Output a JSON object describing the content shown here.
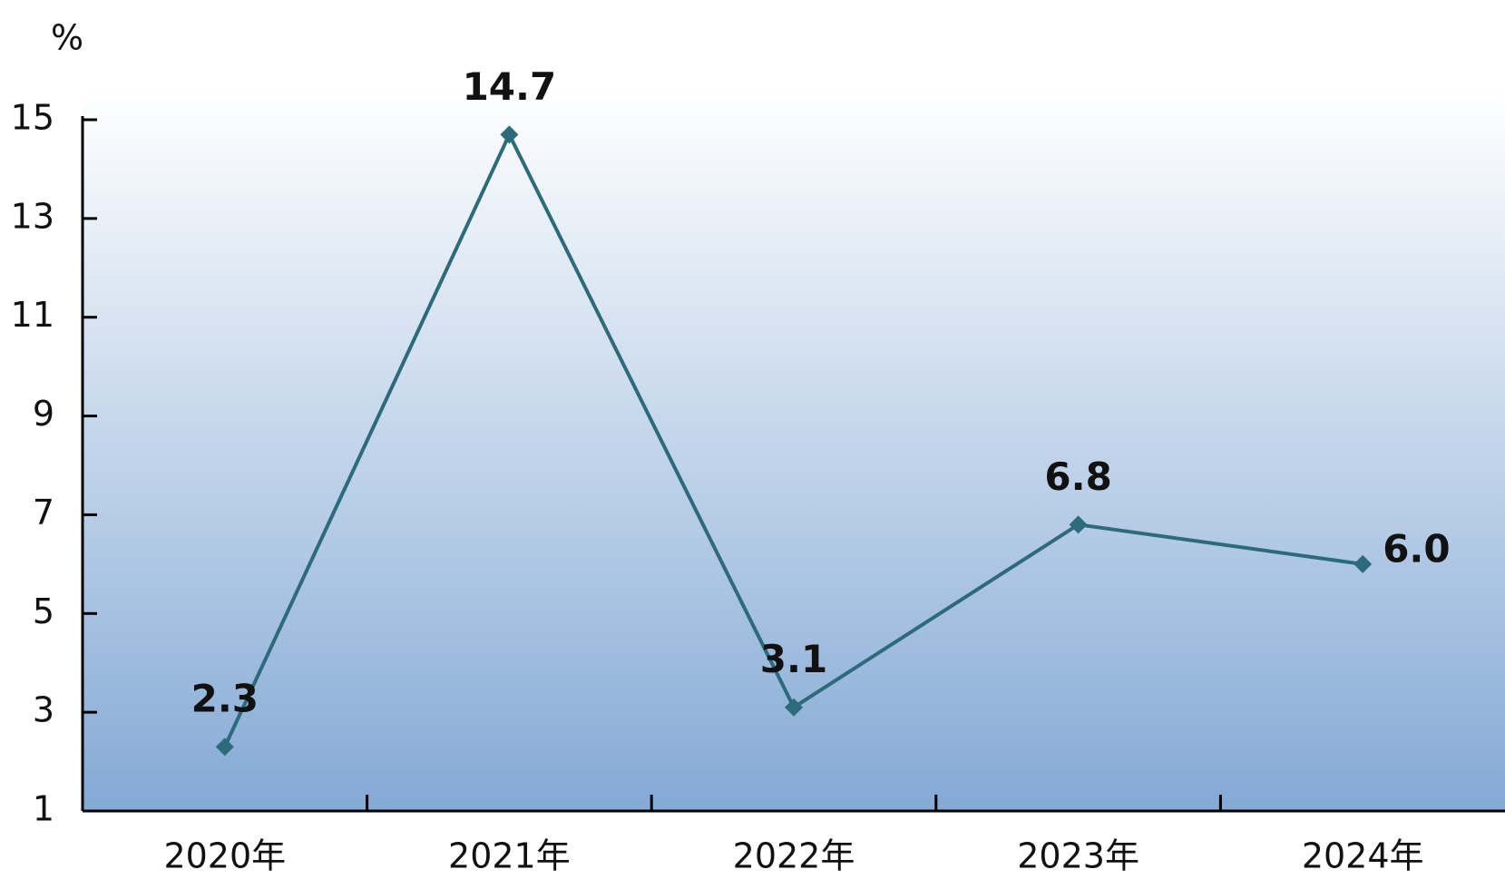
{
  "chart_data": {
    "type": "line",
    "y_label": "%",
    "categories": [
      "2020年",
      "2021年",
      "2022年",
      "2023年",
      "2024年"
    ],
    "series": [
      {
        "color": "#2b6b7b",
        "values": [
          2.3,
          14.7,
          3.1,
          6.8,
          6.0
        ],
        "value_labels": [
          "2.3",
          "14.7",
          "3.1",
          "6.8",
          "6.0"
        ]
      }
    ],
    "ylim": [
      1,
      15
    ],
    "yticks": [
      1,
      3,
      5,
      7,
      9,
      11,
      13,
      15
    ]
  }
}
